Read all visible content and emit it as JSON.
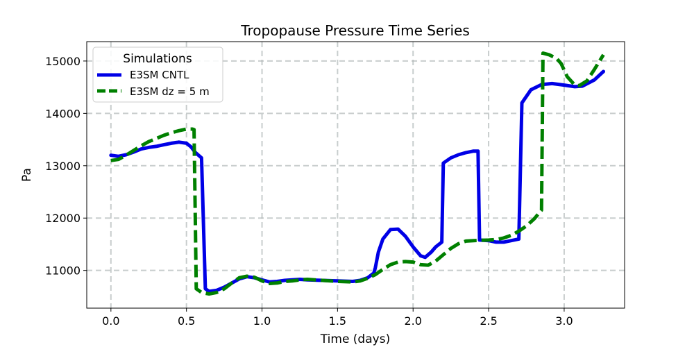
{
  "chart_data": {
    "type": "line",
    "title": "Tropopause Pressure Time Series",
    "xlabel": "Time (days)",
    "ylabel": "Pa",
    "xlim": [
      -0.16,
      3.4
    ],
    "ylim": [
      10280,
      15370
    ],
    "xticks": [
      0.0,
      0.5,
      1.0,
      1.5,
      2.0,
      2.5,
      3.0
    ],
    "xtick_labels": [
      "0.0",
      "0.5",
      "1.0",
      "1.5",
      "2.0",
      "2.5",
      "3.0"
    ],
    "yticks": [
      11000,
      12000,
      13000,
      14000,
      15000
    ],
    "ytick_labels": [
      "11000",
      "12000",
      "13000",
      "14000",
      "15000"
    ],
    "grid": true,
    "legend": {
      "title": "Simulations",
      "position": "top-left"
    },
    "series": [
      {
        "name": "E3SM CNTL",
        "color": "#0000e6",
        "style": "solid",
        "points": [
          [
            0.0,
            13200
          ],
          [
            0.05,
            13180
          ],
          [
            0.1,
            13210
          ],
          [
            0.15,
            13260
          ],
          [
            0.2,
            13320
          ],
          [
            0.25,
            13350
          ],
          [
            0.3,
            13370
          ],
          [
            0.35,
            13400
          ],
          [
            0.4,
            13430
          ],
          [
            0.45,
            13450
          ],
          [
            0.5,
            13430
          ],
          [
            0.53,
            13360
          ],
          [
            0.56,
            13250
          ],
          [
            0.6,
            13150
          ],
          [
            0.625,
            10650
          ],
          [
            0.65,
            10600
          ],
          [
            0.7,
            10620
          ],
          [
            0.75,
            10680
          ],
          [
            0.8,
            10760
          ],
          [
            0.85,
            10840
          ],
          [
            0.9,
            10880
          ],
          [
            0.95,
            10860
          ],
          [
            1.0,
            10820
          ],
          [
            1.05,
            10780
          ],
          [
            1.1,
            10790
          ],
          [
            1.15,
            10810
          ],
          [
            1.2,
            10820
          ],
          [
            1.25,
            10830
          ],
          [
            1.3,
            10820
          ],
          [
            1.4,
            10810
          ],
          [
            1.5,
            10800
          ],
          [
            1.6,
            10790
          ],
          [
            1.65,
            10810
          ],
          [
            1.7,
            10860
          ],
          [
            1.74,
            10950
          ],
          [
            1.75,
            11050
          ],
          [
            1.77,
            11350
          ],
          [
            1.8,
            11600
          ],
          [
            1.85,
            11780
          ],
          [
            1.9,
            11790
          ],
          [
            1.95,
            11650
          ],
          [
            2.0,
            11450
          ],
          [
            2.05,
            11280
          ],
          [
            2.08,
            11250
          ],
          [
            2.12,
            11350
          ],
          [
            2.15,
            11450
          ],
          [
            2.19,
            11540
          ],
          [
            2.2,
            13050
          ],
          [
            2.25,
            13150
          ],
          [
            2.3,
            13210
          ],
          [
            2.35,
            13250
          ],
          [
            2.4,
            13280
          ],
          [
            2.43,
            13280
          ],
          [
            2.44,
            11580
          ],
          [
            2.5,
            11570
          ],
          [
            2.55,
            11540
          ],
          [
            2.6,
            11540
          ],
          [
            2.65,
            11570
          ],
          [
            2.7,
            11600
          ],
          [
            2.72,
            14200
          ],
          [
            2.78,
            14450
          ],
          [
            2.85,
            14550
          ],
          [
            2.92,
            14570
          ],
          [
            3.0,
            14540
          ],
          [
            3.07,
            14510
          ],
          [
            3.12,
            14520
          ],
          [
            3.2,
            14640
          ],
          [
            3.26,
            14800
          ]
        ]
      },
      {
        "name": "E3SM dz = 5 m",
        "color": "#008000",
        "style": "dashed",
        "points": [
          [
            0.0,
            13100
          ],
          [
            0.05,
            13120
          ],
          [
            0.1,
            13200
          ],
          [
            0.15,
            13290
          ],
          [
            0.2,
            13380
          ],
          [
            0.25,
            13460
          ],
          [
            0.3,
            13520
          ],
          [
            0.35,
            13580
          ],
          [
            0.4,
            13630
          ],
          [
            0.45,
            13670
          ],
          [
            0.5,
            13700
          ],
          [
            0.54,
            13700
          ],
          [
            0.55,
            13690
          ],
          [
            0.565,
            10650
          ],
          [
            0.6,
            10580
          ],
          [
            0.65,
            10550
          ],
          [
            0.7,
            10580
          ],
          [
            0.75,
            10650
          ],
          [
            0.8,
            10760
          ],
          [
            0.85,
            10860
          ],
          [
            0.9,
            10890
          ],
          [
            0.95,
            10870
          ],
          [
            1.0,
            10800
          ],
          [
            1.05,
            10750
          ],
          [
            1.1,
            10760
          ],
          [
            1.15,
            10790
          ],
          [
            1.2,
            10800
          ],
          [
            1.25,
            10820
          ],
          [
            1.3,
            10830
          ],
          [
            1.4,
            10810
          ],
          [
            1.5,
            10790
          ],
          [
            1.6,
            10780
          ],
          [
            1.65,
            10800
          ],
          [
            1.7,
            10850
          ],
          [
            1.75,
            10920
          ],
          [
            1.8,
            11020
          ],
          [
            1.85,
            11110
          ],
          [
            1.9,
            11160
          ],
          [
            1.95,
            11170
          ],
          [
            2.0,
            11160
          ],
          [
            2.05,
            11110
          ],
          [
            2.1,
            11100
          ],
          [
            2.15,
            11180
          ],
          [
            2.2,
            11300
          ],
          [
            2.25,
            11420
          ],
          [
            2.3,
            11510
          ],
          [
            2.35,
            11560
          ],
          [
            2.4,
            11570
          ],
          [
            2.45,
            11575
          ],
          [
            2.5,
            11580
          ],
          [
            2.55,
            11590
          ],
          [
            2.6,
            11620
          ],
          [
            2.65,
            11670
          ],
          [
            2.7,
            11750
          ],
          [
            2.75,
            11850
          ],
          [
            2.8,
            11980
          ],
          [
            2.85,
            12150
          ],
          [
            2.86,
            15150
          ],
          [
            2.9,
            15120
          ],
          [
            2.95,
            15050
          ],
          [
            2.98,
            14950
          ],
          [
            3.02,
            14700
          ],
          [
            3.07,
            14540
          ],
          [
            3.1,
            14530
          ],
          [
            3.15,
            14620
          ],
          [
            3.2,
            14840
          ],
          [
            3.26,
            15120
          ]
        ]
      }
    ]
  }
}
